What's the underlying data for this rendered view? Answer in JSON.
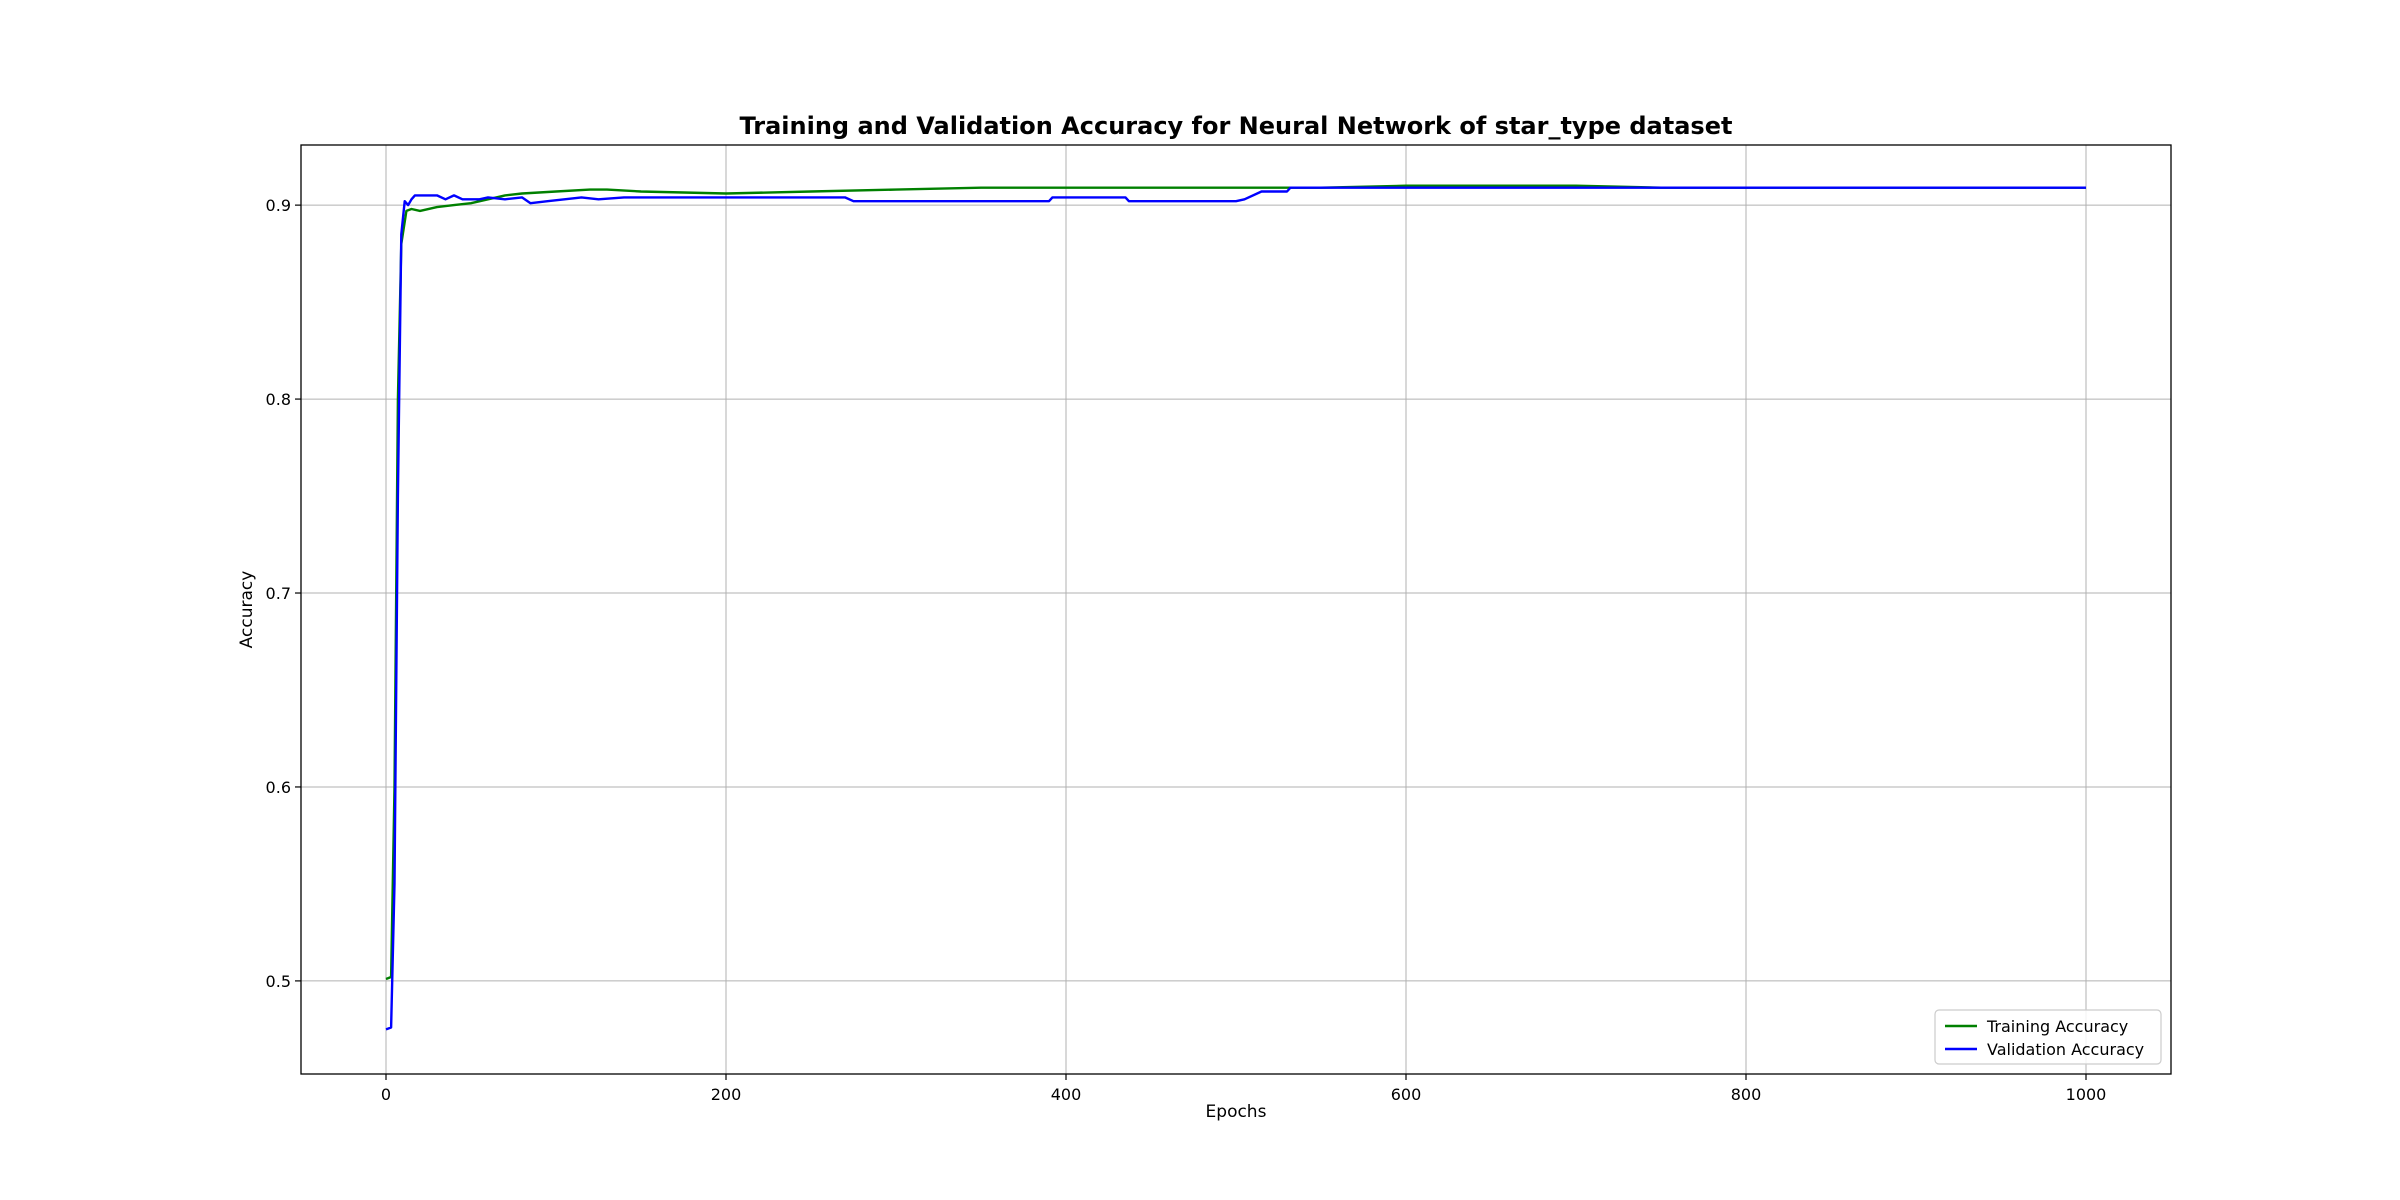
{
  "chart_data": {
    "type": "line",
    "title": "Training and Validation Accuracy for Neural Network of star_type dataset",
    "xlabel": "Epochs",
    "ylabel": "Accuracy",
    "xlim": [
      -50,
      1050
    ],
    "ylim": [
      0.452,
      0.931
    ],
    "xticks": [
      0,
      200,
      400,
      600,
      800,
      1000
    ],
    "yticks": [
      0.5,
      0.6,
      0.7,
      0.8,
      0.9
    ],
    "grid": true,
    "legend_position": "bottom-right",
    "series": [
      {
        "name": "Training Accuracy",
        "color": "#008000",
        "points": [
          [
            0,
            0.501
          ],
          [
            3,
            0.502
          ],
          [
            5,
            0.6
          ],
          [
            7,
            0.8
          ],
          [
            9,
            0.88
          ],
          [
            12,
            0.897
          ],
          [
            15,
            0.898
          ],
          [
            20,
            0.897
          ],
          [
            30,
            0.899
          ],
          [
            40,
            0.9
          ],
          [
            50,
            0.901
          ],
          [
            60,
            0.903
          ],
          [
            70,
            0.905
          ],
          [
            80,
            0.906
          ],
          [
            100,
            0.907
          ],
          [
            120,
            0.908
          ],
          [
            130,
            0.908
          ],
          [
            150,
            0.907
          ],
          [
            200,
            0.906
          ],
          [
            250,
            0.907
          ],
          [
            300,
            0.908
          ],
          [
            350,
            0.909
          ],
          [
            400,
            0.909
          ],
          [
            450,
            0.909
          ],
          [
            500,
            0.909
          ],
          [
            550,
            0.909
          ],
          [
            600,
            0.91
          ],
          [
            650,
            0.91
          ],
          [
            700,
            0.91
          ],
          [
            750,
            0.909
          ],
          [
            800,
            0.909
          ],
          [
            850,
            0.909
          ],
          [
            900,
            0.909
          ],
          [
            950,
            0.909
          ],
          [
            1000,
            0.909
          ]
        ]
      },
      {
        "name": "Validation Accuracy",
        "color": "#0000ff",
        "points": [
          [
            0,
            0.475
          ],
          [
            3,
            0.476
          ],
          [
            5,
            0.55
          ],
          [
            7,
            0.75
          ],
          [
            9,
            0.885
          ],
          [
            11,
            0.902
          ],
          [
            13,
            0.9
          ],
          [
            15,
            0.903
          ],
          [
            17,
            0.905
          ],
          [
            30,
            0.905
          ],
          [
            35,
            0.903
          ],
          [
            40,
            0.905
          ],
          [
            45,
            0.903
          ],
          [
            55,
            0.903
          ],
          [
            60,
            0.904
          ],
          [
            70,
            0.903
          ],
          [
            80,
            0.904
          ],
          [
            85,
            0.901
          ],
          [
            95,
            0.902
          ],
          [
            115,
            0.904
          ],
          [
            125,
            0.903
          ],
          [
            140,
            0.904
          ],
          [
            200,
            0.904
          ],
          [
            270,
            0.904
          ],
          [
            275,
            0.902
          ],
          [
            350,
            0.902
          ],
          [
            390,
            0.902
          ],
          [
            392,
            0.904
          ],
          [
            435,
            0.904
          ],
          [
            437,
            0.902
          ],
          [
            500,
            0.902
          ],
          [
            505,
            0.903
          ],
          [
            515,
            0.907
          ],
          [
            530,
            0.907
          ],
          [
            532,
            0.909
          ],
          [
            600,
            0.909
          ],
          [
            700,
            0.909
          ],
          [
            800,
            0.909
          ],
          [
            900,
            0.909
          ],
          [
            1000,
            0.909
          ]
        ]
      }
    ]
  }
}
